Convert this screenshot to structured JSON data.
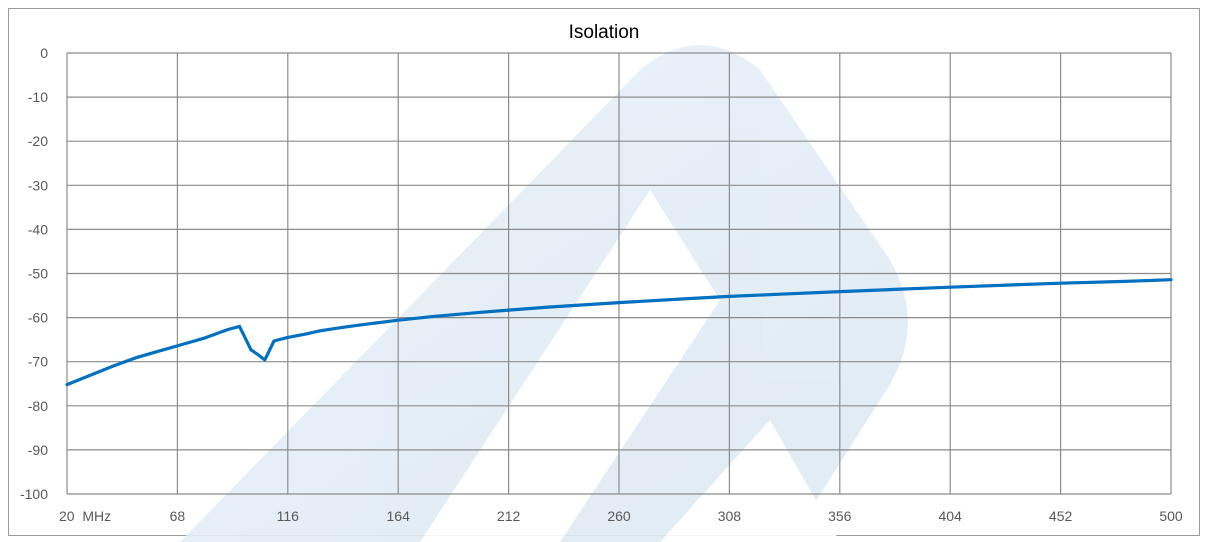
{
  "chart_data": {
    "type": "line",
    "title": "Isolation",
    "xlabel": "",
    "ylabel": "",
    "x_tick_labels": [
      "20  MHz",
      "68",
      "116",
      "164",
      "212",
      "260",
      "308",
      "356",
      "404",
      "452",
      "500"
    ],
    "x_ticks": [
      20,
      68,
      116,
      164,
      212,
      260,
      308,
      356,
      404,
      452,
      500
    ],
    "y_tick_labels": [
      "0",
      "-10",
      "-20",
      "-30",
      "-40",
      "-50",
      "-60",
      "-70",
      "-80",
      "-90",
      "-100"
    ],
    "y_ticks": [
      0,
      -10,
      -20,
      -30,
      -40,
      -50,
      -60,
      -70,
      -80,
      -90,
      -100
    ],
    "xlim": [
      20,
      500
    ],
    "ylim": [
      -100,
      0
    ],
    "grid": true,
    "legend": "none",
    "series": [
      {
        "color": "#0070c0",
        "x": [
          20,
          30,
          40,
          50,
          60,
          70,
          80,
          90,
          95,
          100,
          103,
          106,
          110,
          113,
          116,
          124,
          130,
          140,
          150,
          164,
          180,
          200,
          212,
          230,
          260,
          290,
          308,
          330,
          356,
          380,
          404,
          430,
          452,
          480,
          500
        ],
        "y": [
          -75.2,
          -73.1,
          -71.0,
          -69.1,
          -67.6,
          -66.1,
          -64.6,
          -62.7,
          -62.0,
          -67.3,
          -68.4,
          -69.6,
          -65.3,
          -64.9,
          -64.5,
          -63.7,
          -63.0,
          -62.2,
          -61.5,
          -60.6,
          -59.7,
          -58.8,
          -58.3,
          -57.6,
          -56.6,
          -55.7,
          -55.2,
          -54.7,
          -54.1,
          -53.6,
          -53.1,
          -52.6,
          -52.2,
          -51.8,
          -51.4
        ]
      }
    ]
  }
}
